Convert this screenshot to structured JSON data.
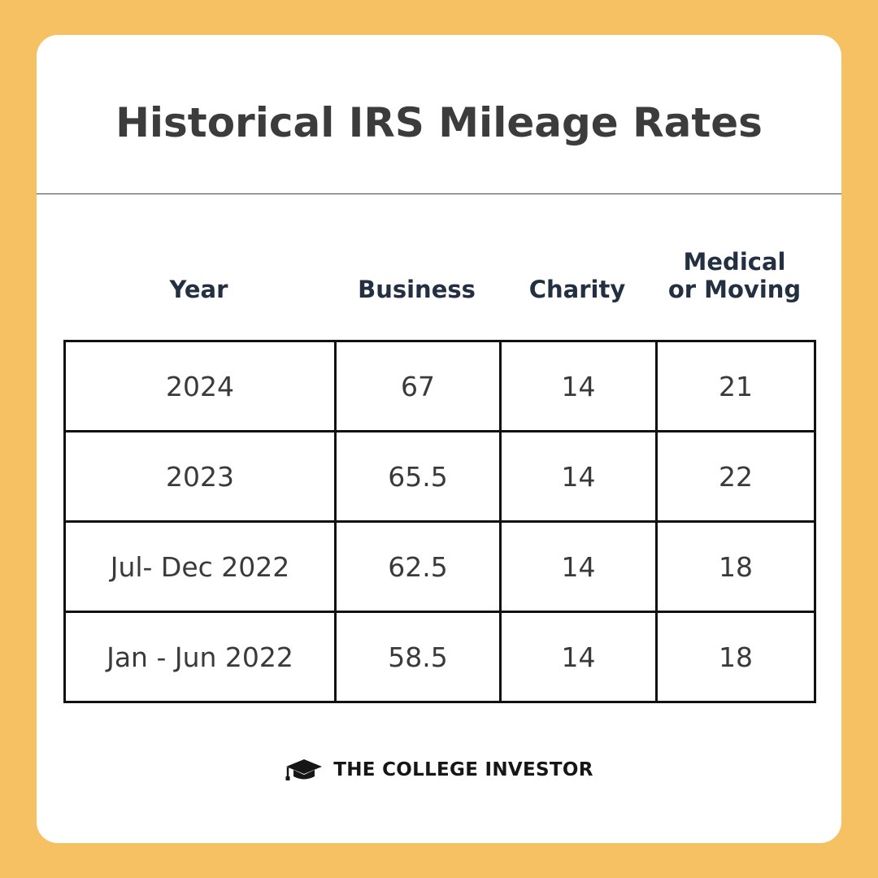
{
  "title": "Historical IRS Mileage Rates",
  "chart_data": {
    "type": "table",
    "title": "Historical IRS Mileage Rates",
    "columns": [
      {
        "key": "year",
        "label_lines": [
          "Year"
        ]
      },
      {
        "key": "business",
        "label_lines": [
          "Business"
        ]
      },
      {
        "key": "charity",
        "label_lines": [
          "Charity"
        ]
      },
      {
        "key": "medical",
        "label_lines": [
          "Medical",
          "or Moving"
        ]
      }
    ],
    "rows": [
      {
        "year": "2024",
        "business": "67",
        "charity": "14",
        "medical": "21"
      },
      {
        "year": "2023",
        "business": "65.5",
        "charity": "14",
        "medical": "22"
      },
      {
        "year": "Jul- Dec 2022",
        "business": "62.5",
        "charity": "14",
        "medical": "18"
      },
      {
        "year": "Jan - Jun 2022",
        "business": "58.5",
        "charity": "14",
        "medical": "18"
      }
    ]
  },
  "brand": {
    "icon": "graduation-cap-icon",
    "name": "THE COLLEGE INVESTOR"
  },
  "colors": {
    "background": "#f6c162",
    "card": "#ffffff",
    "title": "#3c3c3c",
    "header_text": "#233041",
    "cell_text": "#3a3a3a",
    "border": "#111111"
  }
}
